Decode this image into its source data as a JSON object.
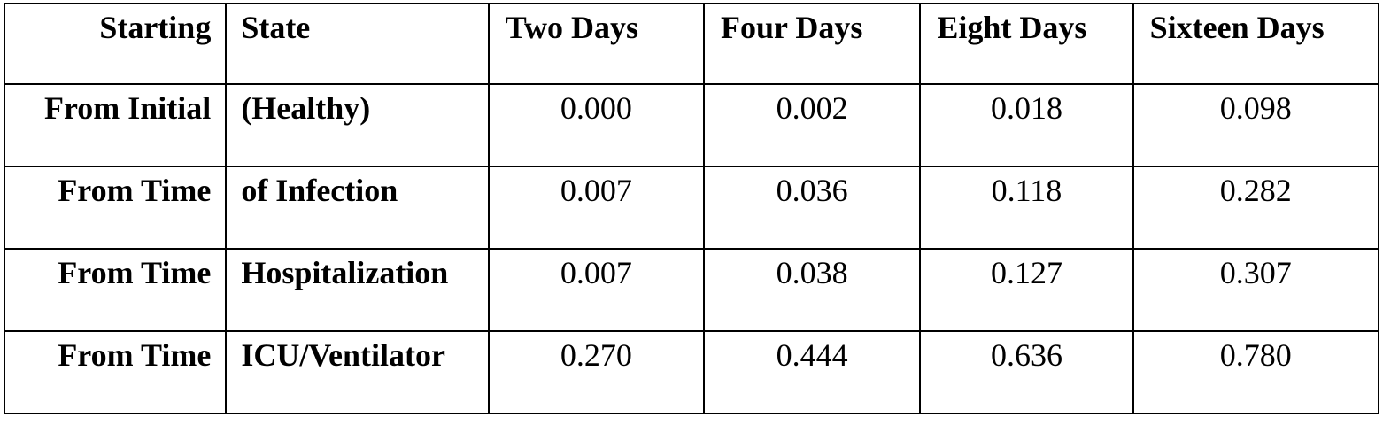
{
  "table": {
    "headers": [
      "Starting",
      "State",
      "Two Days",
      "Four Days",
      "Eight Days",
      "Sixteen Days"
    ],
    "rows": [
      {
        "starting": "From Initial",
        "state": "(Healthy)",
        "values": [
          "0.000",
          "0.002",
          "0.018",
          "0.098"
        ]
      },
      {
        "starting": "From Time",
        "state": "of Infection",
        "values": [
          "0.007",
          "0.036",
          "0.118",
          "0.282"
        ]
      },
      {
        "starting": "From Time",
        "state": "Hospitalization",
        "values": [
          "0.007",
          "0.038",
          "0.127",
          "0.307"
        ]
      },
      {
        "starting": "From Time",
        "state": "ICU/Ventilator",
        "values": [
          "0.270",
          "0.444",
          "0.636",
          "0.780"
        ]
      }
    ]
  }
}
